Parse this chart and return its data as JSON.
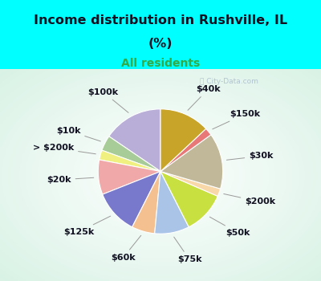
{
  "title1": "Income distribution in Rushville, IL",
  "title2": "(%)",
  "subtitle": "All residents",
  "background_color": "#00FFFF",
  "chart_bg_color": "#daf0e8",
  "watermark": "ⓘ City-Data.com",
  "segments": [
    {
      "label": "$100k",
      "value": 15.5,
      "color": "#b8aed8"
    },
    {
      "label": "$10k",
      "value": 4.0,
      "color": "#a8cc98"
    },
    {
      "label": "> $200k",
      "value": 2.5,
      "color": "#f0f080"
    },
    {
      "label": "$20k",
      "value": 9.0,
      "color": "#f0a8a8"
    },
    {
      "label": "$125k",
      "value": 11.5,
      "color": "#7878cc"
    },
    {
      "label": "$60k",
      "value": 6.0,
      "color": "#f4c090"
    },
    {
      "label": "$75k",
      "value": 9.0,
      "color": "#aac4e8"
    },
    {
      "label": "$50k",
      "value": 11.0,
      "color": "#c8e040"
    },
    {
      "label": "$200k",
      "value": 2.0,
      "color": "#f8d8a8"
    },
    {
      "label": "$30k",
      "value": 14.5,
      "color": "#c0b898"
    },
    {
      "label": "$150k",
      "value": 2.0,
      "color": "#e87878"
    },
    {
      "label": "$40k",
      "value": 13.0,
      "color": "#c8a428"
    }
  ],
  "title_fontsize": 11.5,
  "subtitle_fontsize": 10,
  "label_fontsize": 8
}
